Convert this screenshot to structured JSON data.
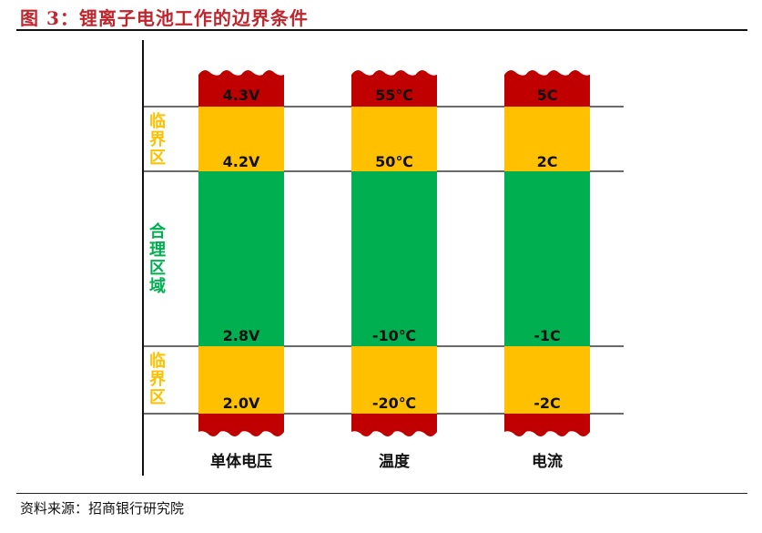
{
  "header": {
    "title": "图 3：锂离子电池工作的边界条件"
  },
  "footer": {
    "source": "资料来源：招商银行研究院"
  },
  "zones": {
    "critical_top": [
      "临",
      "界",
      "区"
    ],
    "reasonable": [
      "合",
      "理",
      "区",
      "域"
    ],
    "critical_bottom": [
      "临",
      "界",
      "区"
    ]
  },
  "columns": [
    {
      "category": "单体电压",
      "labels": [
        "4.3V",
        "4.2V",
        "2.8V",
        "2.0V"
      ]
    },
    {
      "category": "温度",
      "labels": [
        "55℃",
        "50℃",
        "-10℃",
        "-20℃"
      ]
    },
    {
      "category": "电流",
      "labels": [
        "5C",
        "2C",
        "-1C",
        "-2C"
      ]
    }
  ],
  "colors": {
    "danger": "#c00000",
    "critical": "#ffc000",
    "reasonable": "#00b050",
    "title": "#c0262d"
  }
}
